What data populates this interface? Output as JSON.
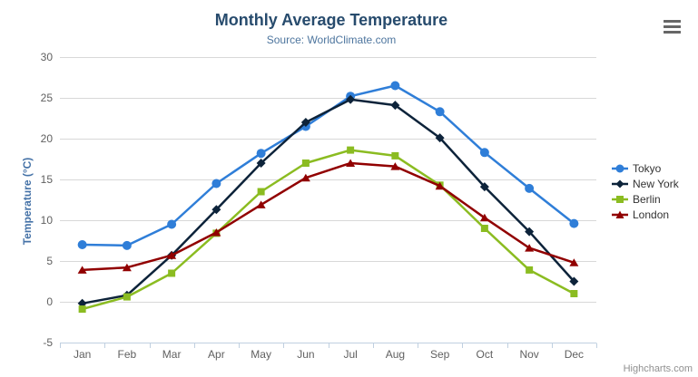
{
  "header": {
    "title": "Monthly Average Temperature",
    "subtitle": "Source: WorldClimate.com"
  },
  "credits": "Highcharts.com",
  "icons": {
    "context_menu": "hamburger-menu"
  },
  "colors": {
    "title": "#274b6d",
    "subtitle": "#4d759e",
    "y_axis_title": "#4572a7",
    "axis_label": "#606060",
    "grid_line": "#d8d8d8",
    "axis_line": "#c0d0e0",
    "legend_text": "#333333",
    "credits_text": "#909090",
    "menu_icon": "#666666"
  },
  "chart_data": {
    "type": "line",
    "title": "Monthly Average Temperature",
    "subtitle": "Source: WorldClimate.com",
    "categories": [
      "Jan",
      "Feb",
      "Mar",
      "Apr",
      "May",
      "Jun",
      "Jul",
      "Aug",
      "Sep",
      "Oct",
      "Nov",
      "Dec"
    ],
    "series": [
      {
        "name": "Tokyo",
        "color": "#2f7ed8",
        "marker": "circle",
        "values": [
          7.0,
          6.9,
          9.5,
          14.5,
          18.2,
          21.5,
          25.2,
          26.5,
          23.3,
          18.3,
          13.9,
          9.6
        ]
      },
      {
        "name": "New York",
        "color": "#0d233a",
        "marker": "diamond",
        "values": [
          -0.2,
          0.8,
          5.7,
          11.3,
          17.0,
          22.0,
          24.8,
          24.1,
          20.1,
          14.1,
          8.6,
          2.5
        ]
      },
      {
        "name": "Berlin",
        "color": "#8bbc21",
        "marker": "square",
        "values": [
          -0.9,
          0.6,
          3.5,
          8.4,
          13.5,
          17.0,
          18.6,
          17.9,
          14.3,
          9.0,
          3.9,
          1.0
        ]
      },
      {
        "name": "London",
        "color": "#910000",
        "marker": "triangle",
        "values": [
          3.9,
          4.2,
          5.7,
          8.5,
          11.9,
          15.2,
          17.0,
          16.6,
          14.2,
          10.3,
          6.6,
          4.8
        ]
      }
    ],
    "xlabel": "",
    "ylabel": "Temperature (°C)",
    "ylim": [
      -5,
      30
    ],
    "ytick_step": 5,
    "grid": true,
    "legend_position": "right"
  }
}
